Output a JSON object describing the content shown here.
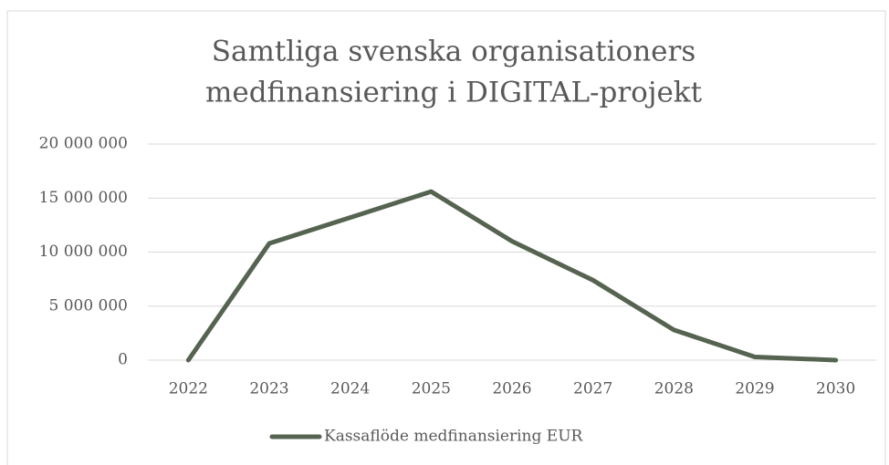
{
  "chart_data": {
    "type": "line",
    "title": [
      "Samtliga svenska organisationers",
      "medfinansiering i DIGITAL-projekt"
    ],
    "categories": [
      "2022",
      "2023",
      "2024",
      "2025",
      "2026",
      "2027",
      "2028",
      "2029",
      "2030"
    ],
    "series": [
      {
        "name": "Kassaflöde medfinansiering EUR",
        "color": "#556350",
        "values": [
          0,
          10800000,
          13200000,
          15600000,
          11000000,
          7400000,
          2800000,
          300000,
          0
        ]
      }
    ],
    "ylim": [
      0,
      20000000
    ],
    "yticks": [
      0,
      {
        "value": 5000000,
        "label": "5 000 000"
      },
      {
        "value": 10000000,
        "label": "10 000 000"
      },
      {
        "value": 15000000,
        "label": "15 000 000"
      },
      {
        "value": 20000000,
        "label": "20 000 000"
      }
    ],
    "grid": true,
    "legend": "bottom"
  }
}
